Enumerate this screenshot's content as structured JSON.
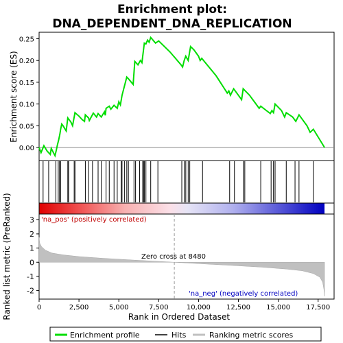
{
  "chart_data": {
    "type": "line",
    "title_line1": "Enrichment plot:",
    "title_line2": "DNA_DEPENDENT_DNA_REPLICATION",
    "top_panel": {
      "ylabel": "Enrichment score (ES)",
      "ylim": [
        -0.03,
        0.265
      ],
      "yticks": [
        "0.00",
        "0.05",
        "0.10",
        "0.15",
        "0.20",
        "0.25"
      ],
      "ytick_values": [
        0.0,
        0.05,
        0.1,
        0.15,
        0.2,
        0.25
      ],
      "series_name": "Enrichment profile",
      "color": "#00dd00",
      "profile": [
        [
          0,
          0.0
        ],
        [
          120,
          -0.012
        ],
        [
          300,
          0.004
        ],
        [
          500,
          -0.008
        ],
        [
          700,
          -0.016
        ],
        [
          760,
          -0.002
        ],
        [
          900,
          -0.012
        ],
        [
          1000,
          -0.019
        ],
        [
          1080,
          -0.006
        ],
        [
          1150,
          0.006
        ],
        [
          1230,
          0.018
        ],
        [
          1300,
          0.03
        ],
        [
          1350,
          0.042
        ],
        [
          1420,
          0.054
        ],
        [
          1500,
          0.05
        ],
        [
          1700,
          0.038
        ],
        [
          1800,
          0.068
        ],
        [
          2000,
          0.058
        ],
        [
          2100,
          0.05
        ],
        [
          2250,
          0.08
        ],
        [
          2500,
          0.072
        ],
        [
          2700,
          0.064
        ],
        [
          2850,
          0.06
        ],
        [
          2900,
          0.075
        ],
        [
          3100,
          0.068
        ],
        [
          3150,
          0.062
        ],
        [
          3400,
          0.079
        ],
        [
          3600,
          0.07
        ],
        [
          3700,
          0.078
        ],
        [
          3900,
          0.07
        ],
        [
          4100,
          0.082
        ],
        [
          4150,
          0.074
        ],
        [
          4200,
          0.09
        ],
        [
          4400,
          0.095
        ],
        [
          4500,
          0.088
        ],
        [
          4700,
          0.097
        ],
        [
          4900,
          0.09
        ],
        [
          5000,
          0.105
        ],
        [
          5100,
          0.098
        ],
        [
          5200,
          0.12
        ],
        [
          5400,
          0.148
        ],
        [
          5500,
          0.162
        ],
        [
          5600,
          0.158
        ],
        [
          5900,
          0.145
        ],
        [
          6000,
          0.198
        ],
        [
          6200,
          0.19
        ],
        [
          6350,
          0.2
        ],
        [
          6450,
          0.195
        ],
        [
          6600,
          0.24
        ],
        [
          6700,
          0.238
        ],
        [
          6800,
          0.247
        ],
        [
          6900,
          0.242
        ],
        [
          7000,
          0.253
        ],
        [
          7300,
          0.24
        ],
        [
          7500,
          0.245
        ],
        [
          8200,
          0.22
        ],
        [
          8900,
          0.19
        ],
        [
          9000,
          0.185
        ],
        [
          9100,
          0.2
        ],
        [
          9200,
          0.21
        ],
        [
          9350,
          0.2
        ],
        [
          9500,
          0.232
        ],
        [
          9700,
          0.225
        ],
        [
          10000,
          0.21
        ],
        [
          10100,
          0.2
        ],
        [
          10200,
          0.205
        ],
        [
          11100,
          0.165
        ],
        [
          11800,
          0.125
        ],
        [
          11900,
          0.13
        ],
        [
          12000,
          0.12
        ],
        [
          12200,
          0.135
        ],
        [
          12400,
          0.125
        ],
        [
          12700,
          0.11
        ],
        [
          12800,
          0.135
        ],
        [
          13200,
          0.12
        ],
        [
          13800,
          0.09
        ],
        [
          13900,
          0.095
        ],
        [
          14500,
          0.078
        ],
        [
          14600,
          0.085
        ],
        [
          14700,
          0.08
        ],
        [
          14800,
          0.1
        ],
        [
          15200,
          0.085
        ],
        [
          15400,
          0.07
        ],
        [
          15500,
          0.08
        ],
        [
          15900,
          0.07
        ],
        [
          16100,
          0.06
        ],
        [
          16300,
          0.075
        ],
        [
          16800,
          0.05
        ],
        [
          17000,
          0.035
        ],
        [
          17200,
          0.042
        ],
        [
          17900,
          0.0
        ]
      ]
    },
    "hits": [
      250,
      600,
      1050,
      1200,
      1280,
      1350,
      1800,
      1850,
      2200,
      2250,
      2900,
      3100,
      3350,
      3700,
      3900,
      4200,
      4400,
      4700,
      4900,
      5150,
      5200,
      5350,
      5500,
      5600,
      5950,
      6050,
      6300,
      6500,
      6550,
      6600,
      6700,
      7000,
      7450,
      8950,
      9100,
      9200,
      9350,
      9450,
      10250,
      11950,
      12250,
      12800,
      12900,
      13900,
      14550,
      14700,
      14800,
      15500,
      16050,
      16300,
      17200
    ],
    "bottom_panel": {
      "ylabel": "Ranked list metric (PreRanked)",
      "xlabel": "Rank in Ordered Dataset",
      "ylim": [
        -2.6,
        3.4
      ],
      "yticks": [
        "3",
        "2",
        "1",
        "0",
        "-1",
        "-2"
      ],
      "ytick_values": [
        3,
        2,
        1,
        0,
        -1,
        -2
      ],
      "xticks": [
        "0",
        "2,500",
        "5,000",
        "7,500",
        "10,000",
        "12,500",
        "15,000",
        "17,500"
      ],
      "xtick_values": [
        0,
        2500,
        5000,
        7500,
        10000,
        12500,
        15000,
        17500
      ],
      "xlim": [
        0,
        18500
      ],
      "n_genes": 17900,
      "metric_curve": [
        [
          0,
          1.75
        ],
        [
          40,
          1.35
        ],
        [
          150,
          1.1
        ],
        [
          400,
          0.85
        ],
        [
          800,
          0.65
        ],
        [
          1500,
          0.52
        ],
        [
          2500,
          0.4
        ],
        [
          4000,
          0.28
        ],
        [
          6000,
          0.15
        ],
        [
          7500,
          0.06
        ],
        [
          8480,
          0.0
        ],
        [
          10000,
          -0.1
        ],
        [
          12000,
          -0.22
        ],
        [
          14000,
          -0.35
        ],
        [
          15500,
          -0.48
        ],
        [
          16500,
          -0.6
        ],
        [
          17200,
          -0.8
        ],
        [
          17600,
          -1.05
        ],
        [
          17780,
          -1.4
        ],
        [
          17860,
          -1.9
        ],
        [
          17900,
          -2.4
        ]
      ],
      "zero_cross_label": "Zero cross at 8480",
      "zero_cross": 8480,
      "pos_label": "'na_pos' (positively correlated)",
      "neg_label": "'na_neg' (negatively correlated)"
    },
    "legend": [
      "Enrichment profile",
      "Hits",
      "Ranking metric scores"
    ]
  }
}
